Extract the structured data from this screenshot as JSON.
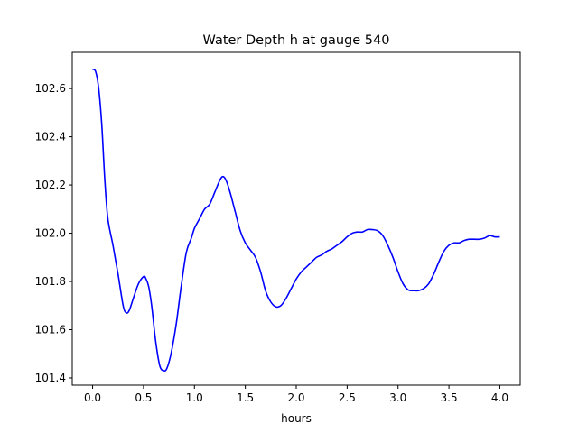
{
  "chart_data": {
    "type": "line",
    "title": "Water Depth h at gauge 540",
    "xlabel": "hours",
    "ylabel": "",
    "xlim": [
      -0.2,
      4.2
    ],
    "ylim": [
      101.37,
      102.75
    ],
    "xticks": [
      0.0,
      0.5,
      1.0,
      1.5,
      2.0,
      2.5,
      3.0,
      3.5,
      4.0
    ],
    "xtick_labels": [
      "0.0",
      "0.5",
      "1.0",
      "1.5",
      "2.0",
      "2.5",
      "3.0",
      "3.5",
      "4.0"
    ],
    "yticks": [
      101.4,
      101.6,
      101.8,
      102.0,
      102.2,
      102.4,
      102.6
    ],
    "ytick_labels": [
      "101.4",
      "101.6",
      "101.8",
      "102.0",
      "102.2",
      "102.4",
      "102.6"
    ],
    "grid": false,
    "series": [
      {
        "color": "#0000ff",
        "x": [
          0.0,
          0.03,
          0.06,
          0.09,
          0.12,
          0.15,
          0.2,
          0.25,
          0.3,
          0.33,
          0.36,
          0.4,
          0.45,
          0.5,
          0.52,
          0.55,
          0.58,
          0.62,
          0.66,
          0.7,
          0.73,
          0.77,
          0.82,
          0.87,
          0.92,
          0.97,
          1.0,
          1.05,
          1.1,
          1.15,
          1.2,
          1.25,
          1.28,
          1.31,
          1.35,
          1.4,
          1.45,
          1.5,
          1.55,
          1.6,
          1.65,
          1.7,
          1.75,
          1.8,
          1.85,
          1.9,
          1.95,
          2.0,
          2.05,
          2.1,
          2.15,
          2.2,
          2.25,
          2.3,
          2.35,
          2.4,
          2.45,
          2.5,
          2.55,
          2.6,
          2.65,
          2.7,
          2.75,
          2.8,
          2.85,
          2.9,
          2.95,
          3.0,
          3.05,
          3.1,
          3.15,
          3.2,
          3.25,
          3.3,
          3.35,
          3.4,
          3.45,
          3.5,
          3.55,
          3.6,
          3.65,
          3.7,
          3.75,
          3.8,
          3.85,
          3.9,
          3.95,
          4.0
        ],
        "y": [
          102.68,
          102.67,
          102.6,
          102.45,
          102.22,
          102.06,
          101.95,
          101.83,
          101.7,
          101.67,
          101.68,
          101.73,
          101.79,
          101.82,
          101.815,
          101.78,
          101.7,
          101.55,
          101.45,
          101.43,
          101.44,
          101.5,
          101.62,
          101.78,
          101.92,
          101.98,
          102.02,
          102.06,
          102.1,
          102.12,
          102.17,
          102.22,
          102.235,
          102.22,
          102.17,
          102.09,
          102.01,
          101.96,
          101.93,
          101.9,
          101.84,
          101.76,
          101.715,
          101.695,
          101.7,
          101.73,
          101.77,
          101.81,
          101.84,
          101.86,
          101.88,
          101.9,
          101.91,
          101.925,
          101.935,
          101.95,
          101.965,
          101.985,
          102.0,
          102.005,
          102.005,
          102.015,
          102.015,
          102.01,
          101.99,
          101.95,
          101.9,
          101.84,
          101.79,
          101.765,
          101.762,
          101.762,
          101.77,
          101.79,
          101.83,
          101.88,
          101.925,
          101.95,
          101.96,
          101.96,
          101.97,
          101.975,
          101.975,
          101.975,
          101.98,
          101.99,
          101.985,
          101.985
        ]
      }
    ]
  }
}
